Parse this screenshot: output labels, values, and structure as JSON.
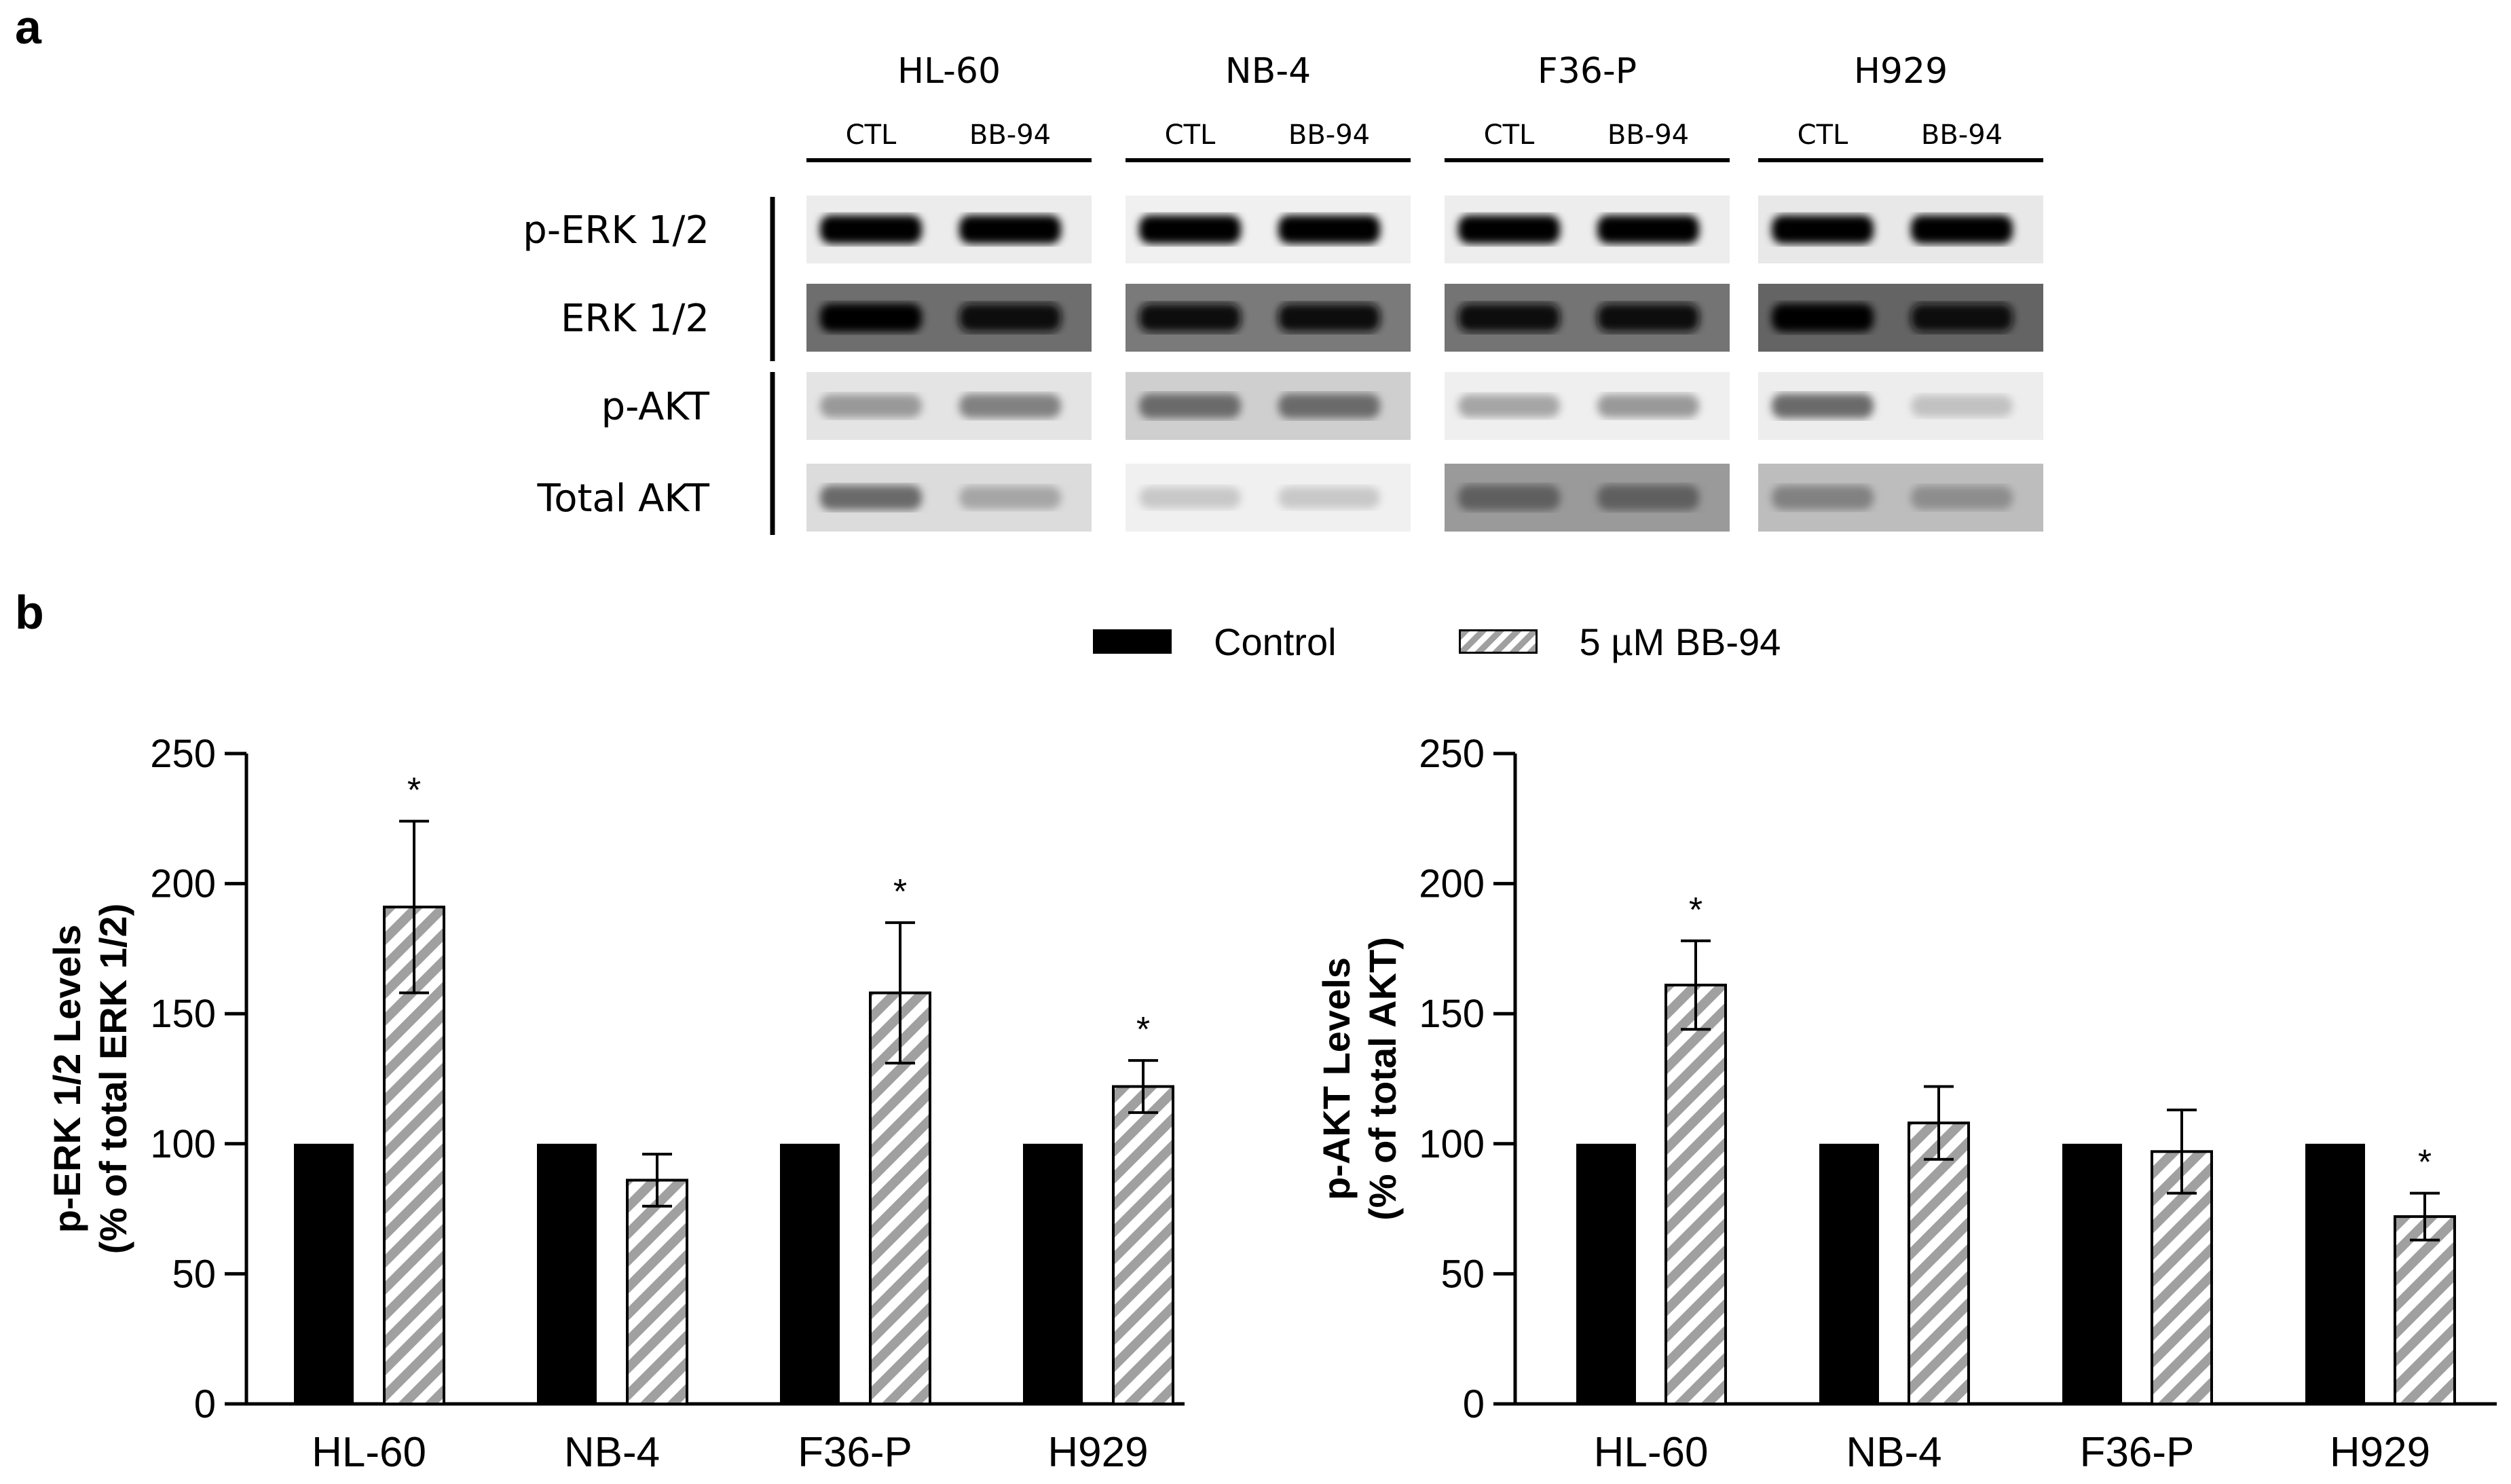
{
  "panel_a": {
    "letter": "a",
    "cell_lines": [
      {
        "name": "HL-60",
        "lanes": [
          "CTL",
          "BB-94"
        ]
      },
      {
        "name": "NB-4",
        "lanes": [
          "CTL",
          "BB-94"
        ]
      },
      {
        "name": "F36-P",
        "lanes": [
          "CTL",
          "BB-94"
        ]
      },
      {
        "name": "H929",
        "lanes": [
          "CTL",
          "BB-94"
        ]
      }
    ],
    "rows": [
      "p-ERK 1/2",
      "ERK 1/2",
      "p-AKT",
      "Total AKT"
    ],
    "row_backgrounds": [
      [
        "#ececec",
        "#f0f0f0",
        "#ededed",
        "#e8e8e8"
      ],
      [
        "#6e6e6e",
        "#7a7a7a",
        "#747474",
        "#646464"
      ],
      [
        "#e4e4e4",
        "#cfcfcf",
        "#efefef",
        "#ededed"
      ],
      [
        "#dcdcdc",
        "#f0f0f0",
        "#9a9a9a",
        "#bdbdbd"
      ]
    ],
    "band_intensity": [
      [
        [
          1.0,
          1.0
        ],
        [
          1.0,
          1.0
        ],
        [
          1.0,
          1.0
        ],
        [
          1.0,
          1.0
        ]
      ],
      [
        [
          1.0,
          0.95
        ],
        [
          0.95,
          0.95
        ],
        [
          0.95,
          0.95
        ],
        [
          1.0,
          0.95
        ]
      ],
      [
        [
          0.35,
          0.45
        ],
        [
          0.55,
          0.55
        ],
        [
          0.3,
          0.35
        ],
        [
          0.55,
          0.18
        ]
      ],
      [
        [
          0.55,
          0.3
        ],
        [
          0.15,
          0.15
        ],
        [
          0.6,
          0.6
        ],
        [
          0.45,
          0.4
        ]
      ]
    ]
  },
  "panel_b": {
    "letter": "b",
    "legend": [
      {
        "label": "Control",
        "pattern": "solid",
        "color": "#000000"
      },
      {
        "label": "5 µM BB-94",
        "pattern": "hatch",
        "color": "#a0a0a0"
      }
    ]
  },
  "chart_data": [
    {
      "type": "bar",
      "categories": [
        "HL-60",
        "NB-4",
        "F36-P",
        "H929"
      ],
      "series": [
        {
          "name": "Control",
          "values": [
            100,
            100,
            100,
            100
          ]
        },
        {
          "name": "5 µM BB-94",
          "values": [
            191,
            86,
            158,
            122
          ],
          "error": [
            33,
            10,
            27,
            10
          ],
          "significant": [
            true,
            false,
            true,
            true
          ]
        }
      ],
      "ylabel_lines": [
        "p-ERK 1/2 Levels",
        "(% of total ERK 1/2)"
      ],
      "xlabel": "",
      "ylim": [
        0,
        250
      ],
      "yticks": [
        0,
        50,
        100,
        150,
        200,
        250
      ],
      "significance_marker": "*",
      "grid": false
    },
    {
      "type": "bar",
      "categories": [
        "HL-60",
        "NB-4",
        "F36-P",
        "H929"
      ],
      "series": [
        {
          "name": "Control",
          "values": [
            100,
            100,
            100,
            100
          ]
        },
        {
          "name": "5 µM BB-94",
          "values": [
            161,
            108,
            97,
            72
          ],
          "error": [
            17,
            14,
            16,
            9
          ],
          "significant": [
            true,
            false,
            false,
            true
          ]
        }
      ],
      "ylabel_lines": [
        "p-AKT Levels",
        "(% of total AKT)"
      ],
      "xlabel": "",
      "ylim": [
        0,
        250
      ],
      "yticks": [
        0,
        50,
        100,
        150,
        200,
        250
      ],
      "significance_marker": "*",
      "grid": false
    }
  ]
}
